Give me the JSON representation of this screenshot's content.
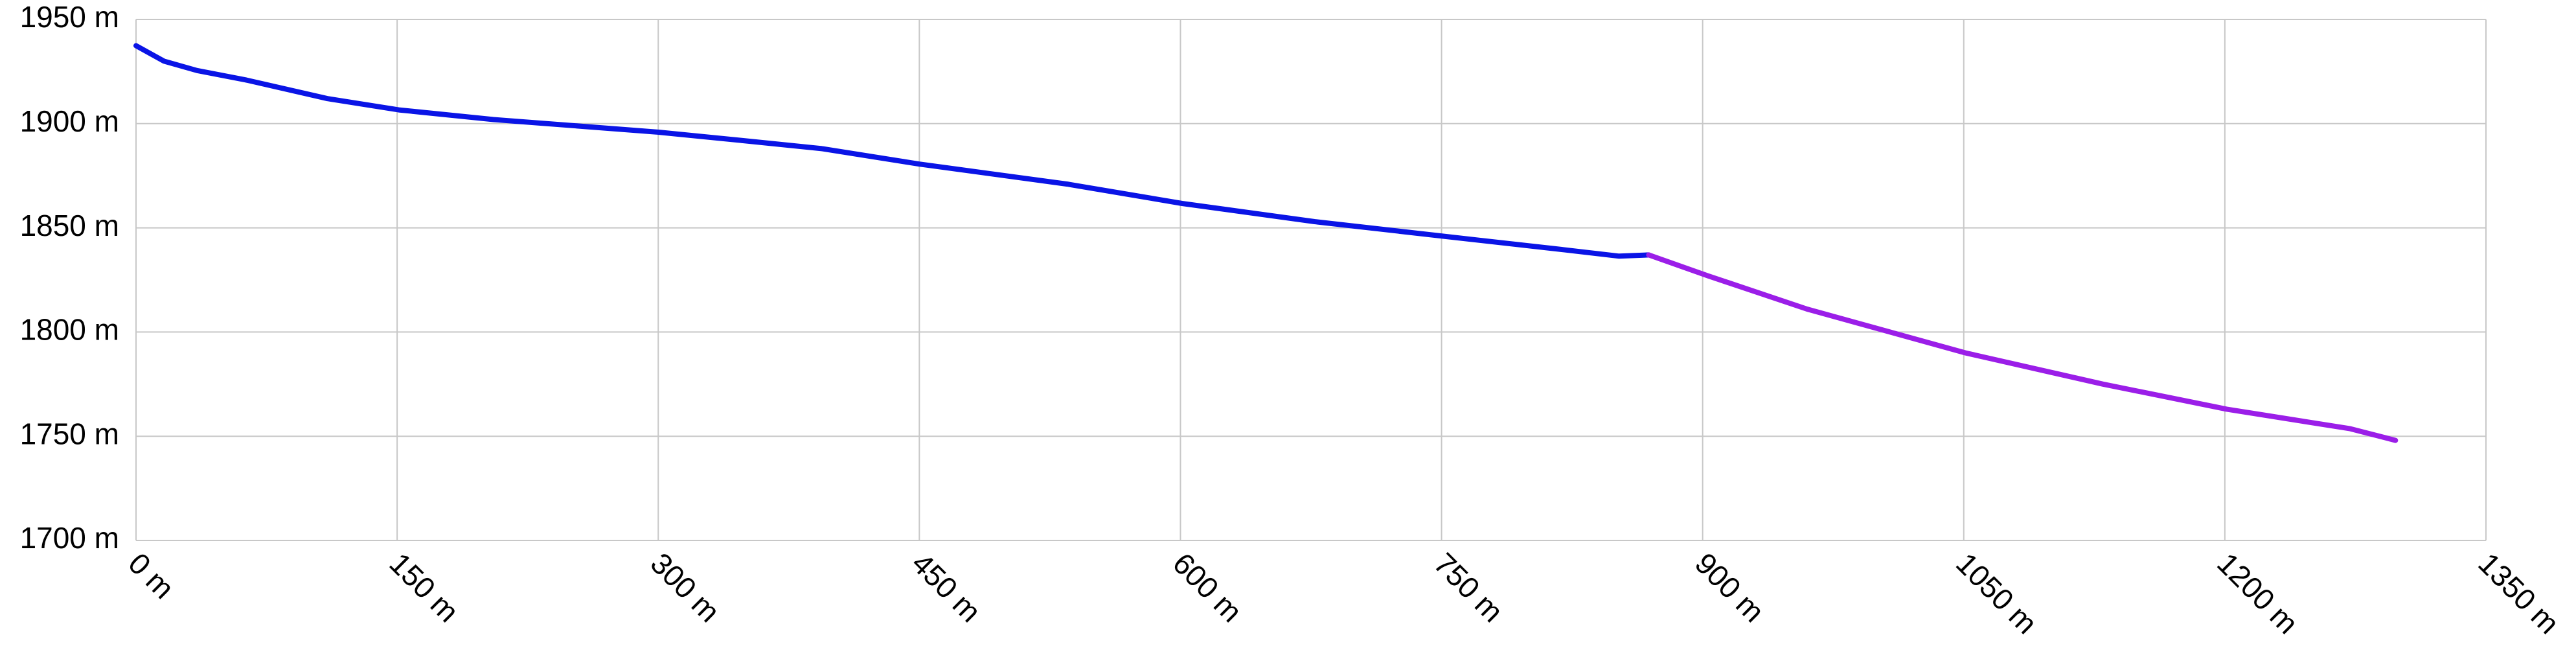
{
  "chart_data": {
    "type": "line",
    "series": [
      {
        "color": "#0a14e6",
        "x": [
          0,
          16,
          35,
          63,
          110,
          151,
          205,
          299,
          347,
          394,
          450,
          535,
          601,
          677,
          751,
          819,
          852,
          869
        ],
        "values": [
          1937.4,
          1930,
          1925.5,
          1921,
          1912,
          1906.6,
          1902,
          1896,
          1892,
          1888,
          1880.6,
          1871,
          1861.7,
          1853,
          1846,
          1839.6,
          1836.4,
          1837
        ]
      },
      {
        "color": "#9b1ee8",
        "x": [
          869,
          903,
          960,
          1051,
          1130,
          1201,
          1272,
          1298
        ],
        "values": [
          1837,
          1827,
          1811,
          1790,
          1775,
          1763,
          1753.6,
          1748
        ]
      }
    ],
    "xlim": [
      0,
      1350
    ],
    "xticks": [
      {
        "value": 0,
        "label": "0 m"
      },
      {
        "value": 150,
        "label": "150 m"
      },
      {
        "value": 300,
        "label": "300 m"
      },
      {
        "value": 450,
        "label": "450 m"
      },
      {
        "value": 600,
        "label": "600 m"
      },
      {
        "value": 750,
        "label": "750 m"
      },
      {
        "value": 900,
        "label": "900 m"
      },
      {
        "value": 1050,
        "label": "1050 m"
      },
      {
        "value": 1200,
        "label": "1200 m"
      },
      {
        "value": 1350,
        "label": "1350 m"
      }
    ],
    "ylim": [
      1700,
      1950
    ],
    "yticks": [
      {
        "value": 1700,
        "label": "1700 m"
      },
      {
        "value": 1750,
        "label": "1750 m"
      },
      {
        "value": 1800,
        "label": "1800 m"
      },
      {
        "value": 1850,
        "label": "1850 m"
      },
      {
        "value": 1900,
        "label": "1900 m"
      },
      {
        "value": 1950,
        "label": "1950 m"
      }
    ],
    "grid": true
  }
}
